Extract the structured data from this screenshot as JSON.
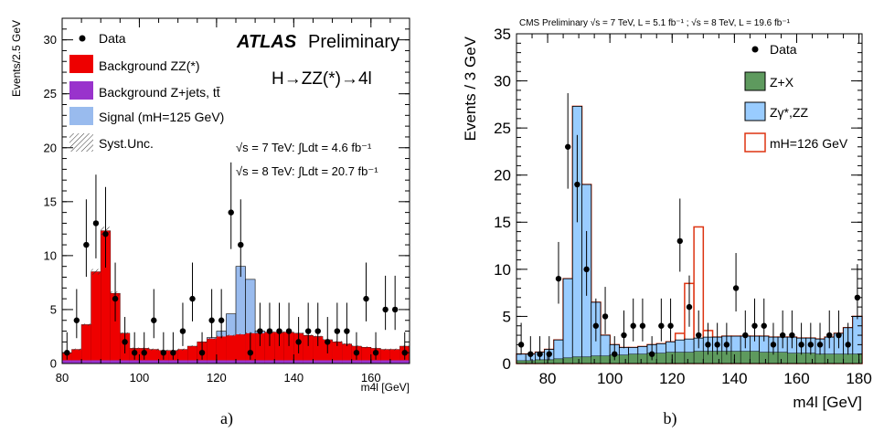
{
  "colors": {
    "atlas_zz": "#ee0000",
    "atlas_zjets": "#9933cc",
    "atlas_signal": "#99bbee",
    "cms_zx": "#5e9a5e",
    "cms_zz": "#99ccff",
    "cms_signal": "#dd3311"
  },
  "chart_data": [
    {
      "type": "bar",
      "panel_caption": "a)",
      "experiment": "ATLAS",
      "experiment_suffix": "Preliminary",
      "process": "H→ZZ(*)→4l",
      "energy_lines": [
        "√s = 7 TeV: ∫Ldt = 4.6 fb⁻¹",
        "√s = 8 TeV: ∫Ldt = 20.7 fb⁻¹"
      ],
      "xlabel": "m4l [GeV]",
      "ylabel": "Events/2.5 GeV",
      "xlim": [
        80,
        170
      ],
      "ylim": [
        0,
        32
      ],
      "xticks": [
        80,
        100,
        120,
        140,
        160
      ],
      "yticks": [
        0,
        5,
        10,
        15,
        20,
        25,
        30
      ],
      "legend": [
        "Data",
        "Background ZZ(*)",
        "Background Z+jets, tt̄",
        "Signal (mH=125 GeV)",
        "Syst.Unc."
      ],
      "bin_edges": [
        80,
        82.5,
        85,
        87.5,
        90,
        92.5,
        95,
        97.5,
        100,
        102.5,
        105,
        107.5,
        110,
        112.5,
        115,
        117.5,
        120,
        122.5,
        125,
        127.5,
        130,
        132.5,
        135,
        137.5,
        140,
        142.5,
        145,
        147.5,
        150,
        152.5,
        155,
        157.5,
        160,
        162.5,
        165,
        167.5,
        170
      ],
      "bkg_total": [
        1.0,
        1.3,
        3.6,
        8.5,
        12.3,
        6.5,
        2.8,
        1.4,
        1.4,
        1.3,
        1.2,
        1.2,
        1.3,
        1.6,
        2.0,
        2.3,
        2.5,
        2.6,
        2.7,
        2.8,
        2.8,
        2.9,
        2.9,
        2.9,
        2.8,
        2.6,
        2.5,
        2.2,
        2.0,
        1.8,
        1.6,
        1.5,
        1.4,
        1.3,
        1.3,
        1.6
      ],
      "zjets": [
        0.3,
        0.3,
        0.3,
        0.3,
        0.3,
        0.3,
        0.3,
        0.3,
        0.3,
        0.3,
        0.3,
        0.3,
        0.3,
        0.3,
        0.3,
        0.3,
        0.3,
        0.3,
        0.3,
        0.3,
        0.3,
        0.3,
        0.3,
        0.3,
        0.3,
        0.3,
        0.3,
        0.3,
        0.3,
        0.3,
        0.3,
        0.3,
        0.3,
        0.3,
        0.3,
        0.3
      ],
      "signal_total": [
        1.0,
        1.3,
        3.6,
        8.5,
        12.3,
        6.5,
        2.8,
        1.4,
        1.4,
        1.3,
        1.2,
        1.2,
        1.3,
        1.6,
        2.0,
        2.4,
        3.0,
        4.6,
        9.0,
        7.8,
        3.0,
        2.9,
        2.9,
        2.9,
        2.8,
        2.6,
        2.5,
        2.2,
        2.0,
        1.8,
        1.6,
        1.5,
        1.4,
        1.3,
        1.3,
        1.6
      ],
      "data": [
        {
          "x": 81.25,
          "y": 1
        },
        {
          "x": 83.75,
          "y": 4
        },
        {
          "x": 86.25,
          "y": 11
        },
        {
          "x": 88.75,
          "y": 13
        },
        {
          "x": 91.25,
          "y": 12
        },
        {
          "x": 93.75,
          "y": 6
        },
        {
          "x": 96.25,
          "y": 2
        },
        {
          "x": 98.75,
          "y": 1
        },
        {
          "x": 101.25,
          "y": 1
        },
        {
          "x": 103.75,
          "y": 4
        },
        {
          "x": 106.25,
          "y": 1
        },
        {
          "x": 108.75,
          "y": 1
        },
        {
          "x": 111.25,
          "y": 3
        },
        {
          "x": 113.75,
          "y": 6
        },
        {
          "x": 116.25,
          "y": 1
        },
        {
          "x": 118.75,
          "y": 4
        },
        {
          "x": 121.25,
          "y": 4
        },
        {
          "x": 123.75,
          "y": 14
        },
        {
          "x": 126.25,
          "y": 11
        },
        {
          "x": 128.75,
          "y": 1
        },
        {
          "x": 131.25,
          "y": 3
        },
        {
          "x": 133.75,
          "y": 3
        },
        {
          "x": 136.25,
          "y": 3
        },
        {
          "x": 138.75,
          "y": 3
        },
        {
          "x": 141.25,
          "y": 2
        },
        {
          "x": 143.75,
          "y": 3
        },
        {
          "x": 146.25,
          "y": 3
        },
        {
          "x": 148.75,
          "y": 2
        },
        {
          "x": 151.25,
          "y": 3
        },
        {
          "x": 153.75,
          "y": 3
        },
        {
          "x": 156.25,
          "y": 1
        },
        {
          "x": 158.75,
          "y": 6
        },
        {
          "x": 161.25,
          "y": 1
        },
        {
          "x": 163.75,
          "y": 5
        },
        {
          "x": 166.25,
          "y": 5
        },
        {
          "x": 168.75,
          "y": 1
        }
      ]
    },
    {
      "type": "bar",
      "panel_caption": "b)",
      "header": "CMS Preliminary   √s = 7 TeV, L = 5.1 fb⁻¹ ; √s = 8 TeV, L = 19.6 fb⁻¹",
      "xlabel": "m4l [GeV]",
      "ylabel": "Events / 3 GeV",
      "xlim": [
        70,
        181
      ],
      "ylim": [
        0,
        35
      ],
      "xticks": [
        80,
        100,
        120,
        140,
        160,
        180
      ],
      "yticks": [
        0,
        5,
        10,
        15,
        20,
        25,
        30,
        35
      ],
      "legend": [
        "Data",
        "Z+X",
        "Zγ*,ZZ",
        "mH=126 GeV"
      ],
      "bin_edges": [
        70,
        73,
        76,
        79,
        82,
        85,
        88,
        91,
        94,
        97,
        100,
        103,
        106,
        109,
        112,
        115,
        118,
        121,
        124,
        127,
        130,
        133,
        136,
        139,
        142,
        145,
        148,
        151,
        154,
        157,
        160,
        163,
        166,
        169,
        172,
        175,
        178,
        181
      ],
      "zx": [
        0.3,
        0.3,
        0.4,
        0.4,
        0.5,
        0.6,
        0.7,
        0.7,
        0.8,
        0.8,
        0.9,
        0.9,
        1.0,
        1.0,
        1.1,
        1.1,
        1.2,
        1.2,
        1.2,
        1.3,
        1.3,
        1.3,
        1.3,
        1.3,
        1.3,
        1.3,
        1.2,
        1.2,
        1.2,
        1.1,
        1.1,
        1.1,
        1.0,
        1.0,
        1.0,
        1.0,
        1.0
      ],
      "zz_total": [
        1.0,
        1.0,
        1.2,
        1.5,
        2.5,
        9.0,
        27.3,
        19.0,
        6.5,
        3.0,
        2.0,
        1.7,
        1.7,
        1.8,
        2.0,
        2.1,
        2.3,
        2.5,
        2.6,
        2.7,
        2.8,
        2.8,
        2.9,
        2.9,
        2.9,
        2.9,
        2.9,
        2.8,
        2.8,
        2.8,
        2.7,
        2.7,
        2.6,
        2.8,
        3.2,
        3.8,
        5.0
      ],
      "signal_total": [
        1.0,
        1.0,
        1.2,
        1.5,
        2.5,
        9.0,
        27.3,
        19.0,
        6.5,
        3.0,
        2.0,
        1.7,
        1.7,
        1.8,
        2.0,
        2.1,
        2.3,
        3.2,
        8.5,
        14.5,
        3.5,
        2.8,
        2.9,
        2.9,
        2.9,
        2.9,
        2.9,
        2.8,
        2.8,
        2.8,
        2.7,
        2.7,
        2.6,
        2.8,
        3.2,
        3.8,
        5.0
      ],
      "data": [
        {
          "x": 71.5,
          "y": 2
        },
        {
          "x": 74.5,
          "y": 1
        },
        {
          "x": 77.5,
          "y": 1
        },
        {
          "x": 80.5,
          "y": 1
        },
        {
          "x": 83.5,
          "y": 9
        },
        {
          "x": 86.5,
          "y": 23
        },
        {
          "x": 89.5,
          "y": 19
        },
        {
          "x": 92.5,
          "y": 10
        },
        {
          "x": 95.5,
          "y": 4
        },
        {
          "x": 98.5,
          "y": 5
        },
        {
          "x": 101.5,
          "y": 1
        },
        {
          "x": 104.5,
          "y": 3
        },
        {
          "x": 107.5,
          "y": 4
        },
        {
          "x": 110.5,
          "y": 4
        },
        {
          "x": 113.5,
          "y": 1
        },
        {
          "x": 116.5,
          "y": 4
        },
        {
          "x": 119.5,
          "y": 4
        },
        {
          "x": 122.5,
          "y": 13
        },
        {
          "x": 125.5,
          "y": 6
        },
        {
          "x": 128.5,
          "y": 3
        },
        {
          "x": 131.5,
          "y": 2
        },
        {
          "x": 134.5,
          "y": 2
        },
        {
          "x": 137.5,
          "y": 2
        },
        {
          "x": 140.5,
          "y": 8
        },
        {
          "x": 143.5,
          "y": 3
        },
        {
          "x": 146.5,
          "y": 4
        },
        {
          "x": 149.5,
          "y": 4
        },
        {
          "x": 152.5,
          "y": 2
        },
        {
          "x": 155.5,
          "y": 3
        },
        {
          "x": 158.5,
          "y": 3
        },
        {
          "x": 161.5,
          "y": 2
        },
        {
          "x": 164.5,
          "y": 2
        },
        {
          "x": 167.5,
          "y": 2
        },
        {
          "x": 170.5,
          "y": 3
        },
        {
          "x": 173.5,
          "y": 3
        },
        {
          "x": 176.5,
          "y": 2
        },
        {
          "x": 179.5,
          "y": 7
        }
      ]
    }
  ]
}
